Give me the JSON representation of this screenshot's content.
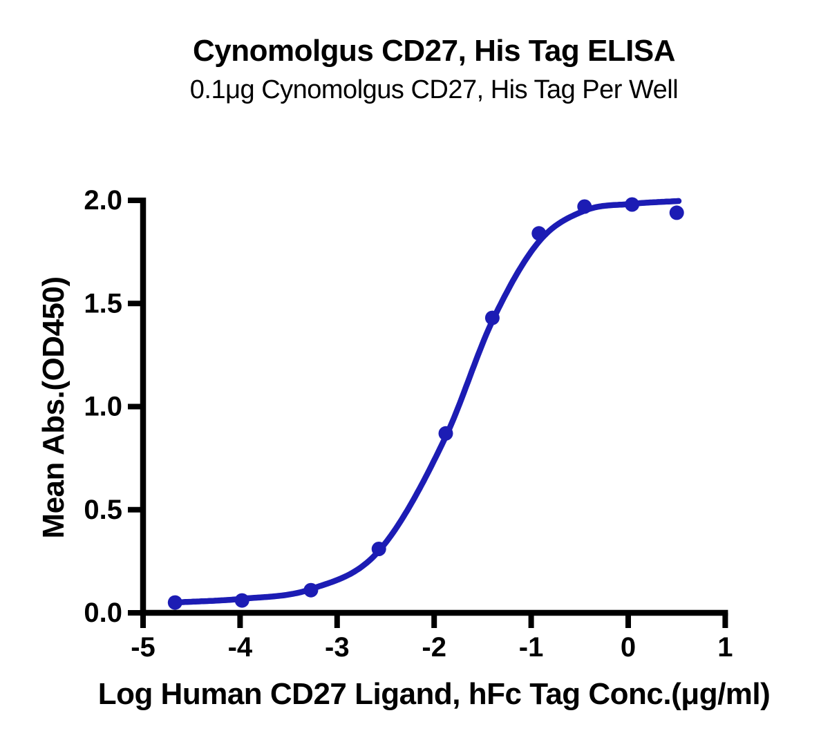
{
  "chart_data": {
    "type": "scatter",
    "title": "Cynomolgus CD27, His Tag ELISA",
    "subtitle": "0.1μg Cynomolgus CD27, His Tag Per Well",
    "xlabel": "Log Human CD27 Ligand, hFc Tag Conc.(μg/ml)",
    "ylabel": "Mean Abs.(OD450)",
    "xlim": [
      -5,
      1
    ],
    "ylim": [
      0,
      2
    ],
    "x_ticks": [
      -5,
      -4,
      -3,
      -2,
      -1,
      0,
      1
    ],
    "x_tick_labels": [
      "-5",
      "-4",
      "-3",
      "-2",
      "-1",
      "0",
      "1"
    ],
    "y_ticks": [
      0,
      0.5,
      1.0,
      1.5,
      2.0
    ],
    "y_tick_labels": [
      "0.0",
      "0.5",
      "1.0",
      "1.5",
      "2.0"
    ],
    "grid": false,
    "legend": "none",
    "axis_color": "#000000",
    "background_color": "#ffffff",
    "series": [
      {
        "color": "#1C1CB4",
        "marker": "circle",
        "points": [
          [
            -4.67,
            0.05
          ],
          [
            -3.98,
            0.06
          ],
          [
            -3.27,
            0.11
          ],
          [
            -2.57,
            0.31
          ],
          [
            -1.88,
            0.87
          ],
          [
            -1.4,
            1.43
          ],
          [
            -0.92,
            1.84
          ],
          [
            -0.45,
            1.97
          ],
          [
            0.04,
            1.98
          ],
          [
            0.5,
            1.94
          ]
        ],
        "fit_curve": [
          [
            -4.67,
            0.05
          ],
          [
            -3.98,
            0.068
          ],
          [
            -3.27,
            0.115
          ],
          [
            -2.57,
            0.3
          ],
          [
            -1.88,
            0.855
          ],
          [
            -1.4,
            1.415
          ],
          [
            -0.92,
            1.8
          ],
          [
            -0.45,
            1.95
          ],
          [
            0.04,
            1.983
          ],
          [
            0.52,
            1.997
          ]
        ]
      }
    ]
  }
}
